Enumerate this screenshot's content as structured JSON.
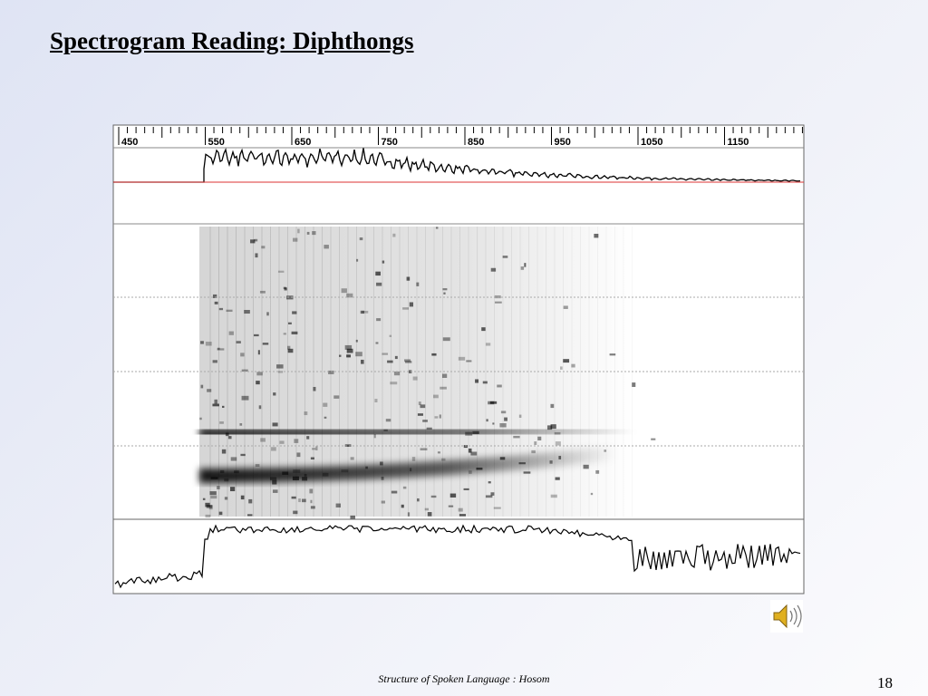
{
  "header": {
    "title": "Spectrogram Reading: Diphthongs"
  },
  "ruler": {
    "labels": [
      "450",
      "550",
      "650",
      "750",
      "850",
      "950",
      "1050",
      "1150"
    ]
  },
  "footer": {
    "text": "Structure of Spoken Language : Hosom",
    "page": "18"
  }
}
